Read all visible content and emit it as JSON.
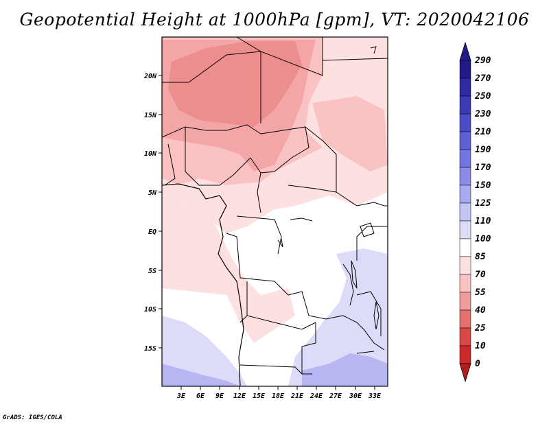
{
  "title": "Geopotential Height at 1000hPa [gpm], VT: 2020042106",
  "credit": "GrADS: IGES/COLA",
  "lat_ticks": [
    "20N",
    "15N",
    "10N",
    "5N",
    "EQ",
    "5S",
    "10S",
    "15S"
  ],
  "lon_ticks": [
    "3E",
    "6E",
    "9E",
    "12E",
    "15E",
    "18E",
    "21E",
    "24E",
    "27E",
    "30E",
    "33E"
  ],
  "colorbar": {
    "labels": [
      "290",
      "270",
      "250",
      "230",
      "210",
      "190",
      "170",
      "150",
      "125",
      "110",
      "100",
      "85",
      "70",
      "55",
      "40",
      "25",
      "10",
      "0"
    ],
    "colors": [
      "#231a8a",
      "#2e2aa1",
      "#3b3bb6",
      "#4b4cc8",
      "#5e60d6",
      "#7375e0",
      "#8a8ce8",
      "#a6a8f0",
      "#c3c5f5",
      "#dcdcf8",
      "#ffffff",
      "#fde0e0",
      "#fac2c2",
      "#f09c9c",
      "#e67070",
      "#db4848",
      "#cc2a2a",
      "#b71c1c"
    ]
  }
}
